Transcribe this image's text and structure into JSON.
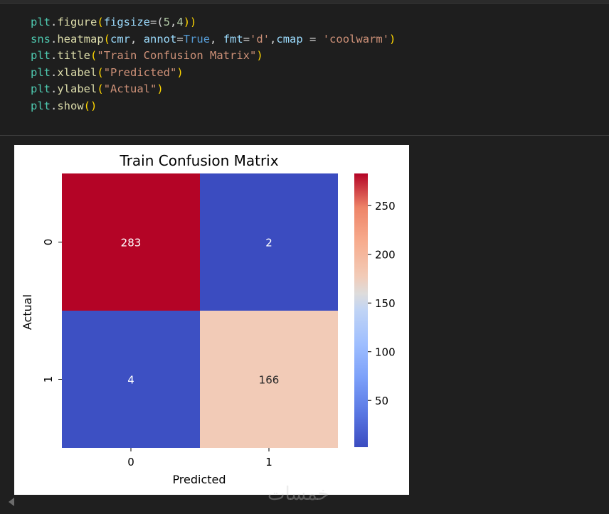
{
  "code_cell": {
    "lines": [
      [
        {
          "t": "plt",
          "c": "mod"
        },
        {
          "t": ".",
          "c": "punc"
        },
        {
          "t": "figure",
          "c": "fn"
        },
        {
          "t": "(",
          "c": "paren"
        },
        {
          "t": "figsize",
          "c": "var"
        },
        {
          "t": "=(",
          "c": "punc"
        },
        {
          "t": "5",
          "c": "num"
        },
        {
          "t": ",",
          "c": "punc"
        },
        {
          "t": "4",
          "c": "num"
        },
        {
          "t": "))",
          "c": "paren"
        }
      ],
      [
        {
          "t": "sns",
          "c": "mod"
        },
        {
          "t": ".",
          "c": "punc"
        },
        {
          "t": "heatmap",
          "c": "fn"
        },
        {
          "t": "(",
          "c": "paren"
        },
        {
          "t": "cmr",
          "c": "var"
        },
        {
          "t": ", ",
          "c": "punc"
        },
        {
          "t": "annot",
          "c": "var"
        },
        {
          "t": "=",
          "c": "punc"
        },
        {
          "t": "True",
          "c": "kw"
        },
        {
          "t": ", ",
          "c": "punc"
        },
        {
          "t": "fmt",
          "c": "var"
        },
        {
          "t": "=",
          "c": "punc"
        },
        {
          "t": "'d'",
          "c": "str"
        },
        {
          "t": ",",
          "c": "punc"
        },
        {
          "t": "cmap",
          "c": "var"
        },
        {
          "t": " = ",
          "c": "punc"
        },
        {
          "t": "'coolwarm'",
          "c": "str"
        },
        {
          "t": ")",
          "c": "paren"
        }
      ],
      [
        {
          "t": "plt",
          "c": "mod"
        },
        {
          "t": ".",
          "c": "punc"
        },
        {
          "t": "title",
          "c": "fn"
        },
        {
          "t": "(",
          "c": "paren"
        },
        {
          "t": "\"Train Confusion Matrix\"",
          "c": "str"
        },
        {
          "t": ")",
          "c": "paren"
        }
      ],
      [
        {
          "t": "plt",
          "c": "mod"
        },
        {
          "t": ".",
          "c": "punc"
        },
        {
          "t": "xlabel",
          "c": "fn"
        },
        {
          "t": "(",
          "c": "paren"
        },
        {
          "t": "\"Predicted\"",
          "c": "str"
        },
        {
          "t": ")",
          "c": "paren"
        }
      ],
      [
        {
          "t": "plt",
          "c": "mod"
        },
        {
          "t": ".",
          "c": "punc"
        },
        {
          "t": "ylabel",
          "c": "fn"
        },
        {
          "t": "(",
          "c": "paren"
        },
        {
          "t": "\"Actual\"",
          "c": "str"
        },
        {
          "t": ")",
          "c": "paren"
        }
      ],
      [
        {
          "t": "plt",
          "c": "mod"
        },
        {
          "t": ".",
          "c": "punc"
        },
        {
          "t": "show",
          "c": "fn"
        },
        {
          "t": "()",
          "c": "paren"
        }
      ]
    ]
  },
  "chart_data": {
    "type": "heatmap",
    "title": "Train Confusion Matrix",
    "xlabel": "Predicted",
    "ylabel": "Actual",
    "x_categories": [
      "0",
      "1"
    ],
    "y_categories": [
      "0",
      "1"
    ],
    "values": [
      [
        283,
        2
      ],
      [
        4,
        166
      ]
    ],
    "colormap": "coolwarm",
    "cell_colors": [
      [
        "#b40426",
        "#3b4cc0"
      ],
      [
        "#3d50c3",
        "#f2cbb7"
      ]
    ],
    "annotation_colors": [
      [
        "#ffffff",
        "#ffffff"
      ],
      [
        "#ffffff",
        "#262626"
      ]
    ],
    "colorbar": {
      "min": 2,
      "max": 283,
      "ticks": [
        50,
        100,
        150,
        200,
        250
      ],
      "tick_labels": [
        "50",
        "100",
        "150",
        "200",
        "250"
      ]
    }
  },
  "watermark": "خمسات"
}
